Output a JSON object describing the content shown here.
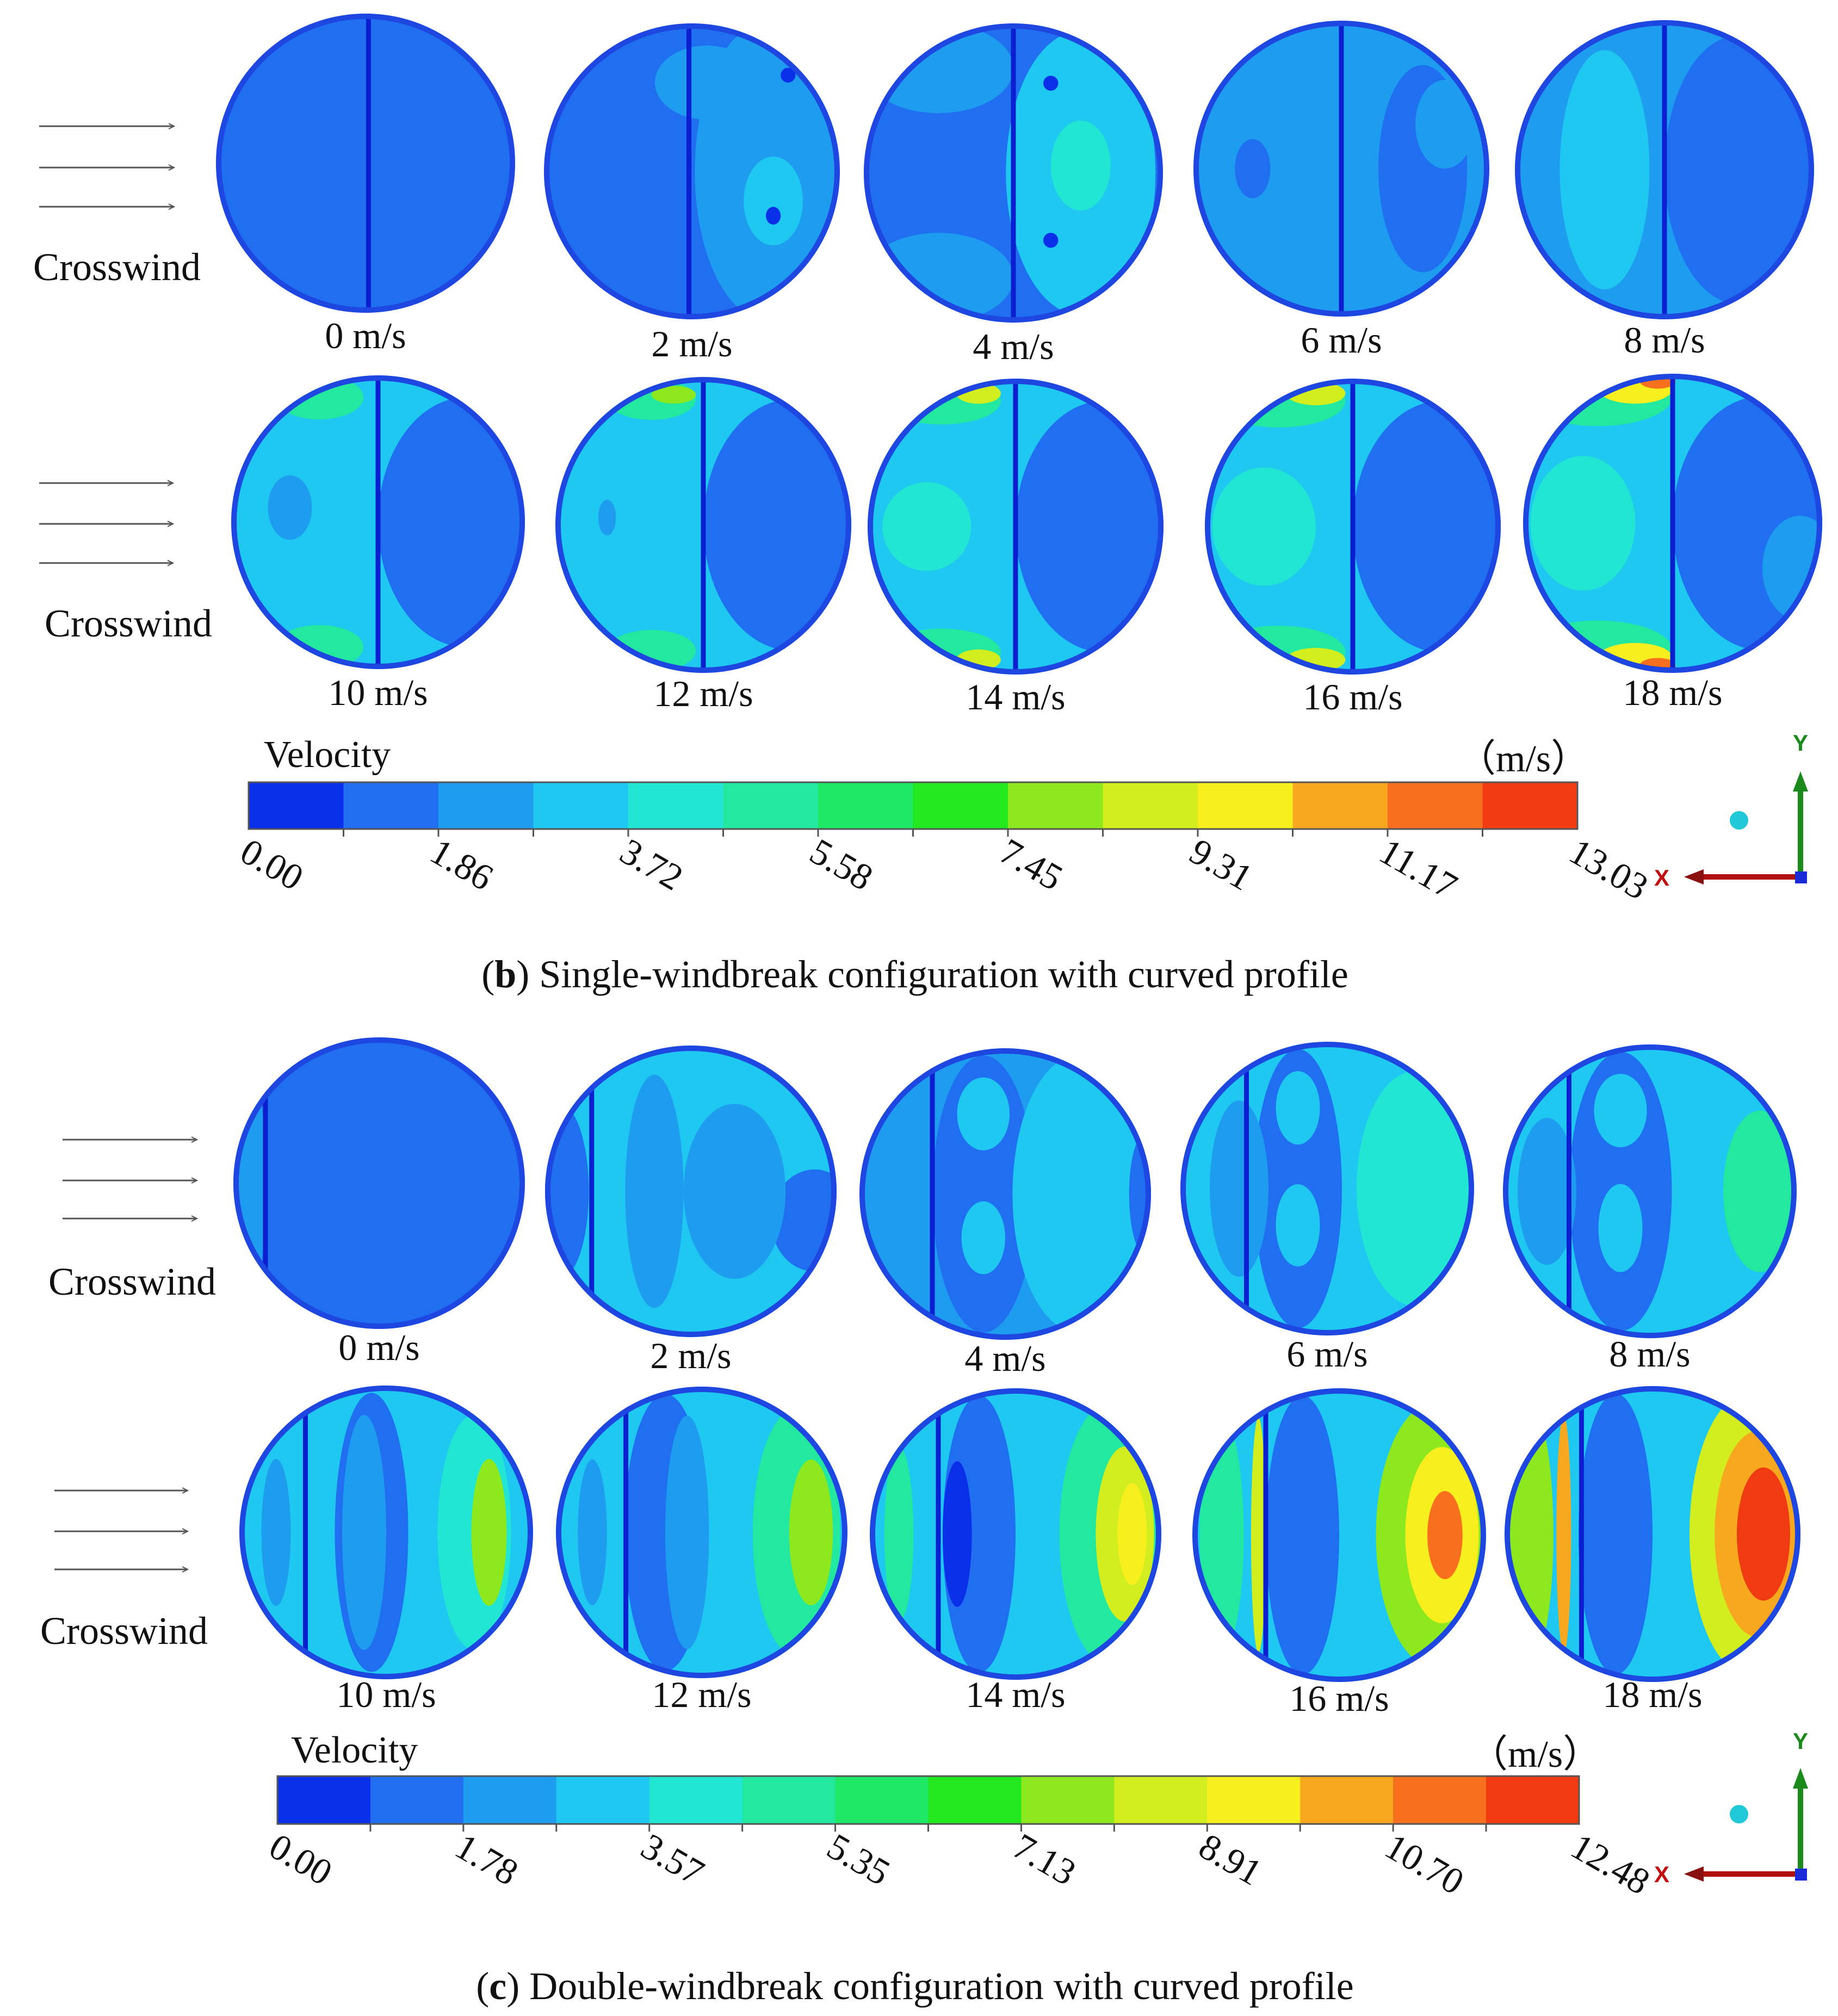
{
  "colors": {
    "cmap": [
      "#0a2fe8",
      "#1f6ff0",
      "#1e9cf0",
      "#1ec8f0",
      "#22e6d4",
      "#22e8a0",
      "#1ee866",
      "#22e81e",
      "#8ee81e",
      "#d2ee1e",
      "#f8f01e",
      "#f8a81e",
      "#f8701e",
      "#f03a12"
    ],
    "circle_base": "#1e66e8",
    "windbreak": "#0a1fd0",
    "arrow": "#555555",
    "axis_y": "#1a8a1a",
    "axis_x": "#b01010",
    "axis_dot": "#20c8d8"
  },
  "panels": [
    {
      "id": "b",
      "caption_letter": "b",
      "caption_text": "Single-windbreak configuration with curved profile",
      "crosswind_label": "Crosswind",
      "row1_speeds": [
        "0 m/s",
        "2 m/s",
        "4 m/s",
        "6 m/s",
        "8 m/s"
      ],
      "row2_speeds": [
        "10 m/s",
        "12 m/s",
        "14 m/s",
        "16 m/s",
        "18 m/s"
      ],
      "colorbar": {
        "title": "Velocity",
        "unit": "（m/s）",
        "ticks": [
          "0.00",
          "1.86",
          "3.72",
          "5.58",
          "7.45",
          "9.31",
          "11.17",
          "13.03"
        ]
      },
      "axes": {
        "y": "Y",
        "x": "X"
      }
    },
    {
      "id": "c",
      "caption_letter": "c",
      "caption_text": "Double-windbreak configuration with curved profile",
      "crosswind_label": "Crosswind",
      "row1_speeds": [
        "0 m/s",
        "2 m/s",
        "4 m/s",
        "6 m/s",
        "8 m/s"
      ],
      "row2_speeds": [
        "10 m/s",
        "12 m/s",
        "14 m/s",
        "16 m/s",
        "18 m/s"
      ],
      "colorbar": {
        "title": "Velocity",
        "unit": "（m/s）",
        "ticks": [
          "0.00",
          "1.78",
          "3.57",
          "5.35",
          "7.13",
          "8.91",
          "10.70",
          "12.48"
        ]
      },
      "axes": {
        "y": "Y",
        "x": "X"
      }
    }
  ]
}
